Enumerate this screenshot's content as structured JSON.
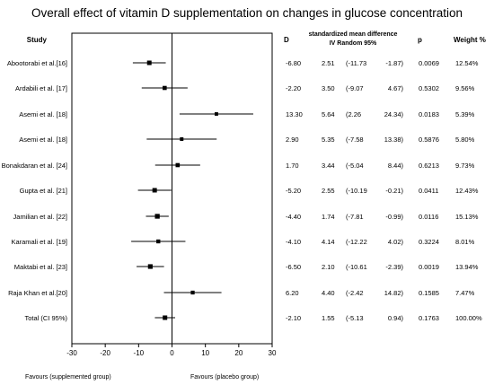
{
  "chart_data": {
    "type": "forest",
    "title": "Overall effect of vitamin D supplementation on changes in glucose concentration",
    "headers": {
      "study": "Study",
      "d": "D",
      "smd_line1": "standardized mean difference",
      "smd_line2": "IV Random 95%",
      "p": "p",
      "weight": "Weight  %"
    },
    "xlim": [
      -30,
      30
    ],
    "xticks": [
      "-30",
      "-20",
      "-10",
      "0",
      "10",
      "20",
      "30"
    ],
    "xtick_values": [
      -30,
      -20,
      -10,
      0,
      10,
      20,
      30
    ],
    "footer_left": "Favours (supplemented group)",
    "footer_right": "Favours (placebo group)",
    "studies": [
      {
        "name": "Abootorabi et al.[16]",
        "d": -6.8,
        "se": 2.51,
        "lo": -11.73,
        "hi": -1.87,
        "d_text": "-6.80",
        "se_text": "2.51",
        "lo_text": "(-11.73",
        "hi_text": "-1.87)",
        "p": "0.0069",
        "weight": "12.54%",
        "weight_value": 12.54
      },
      {
        "name": "Ardabili et al. [17]",
        "d": -2.2,
        "se": 3.5,
        "lo": -9.07,
        "hi": 4.67,
        "d_text": "-2.20",
        "se_text": "3.50",
        "lo_text": "(-9.07",
        "hi_text": "4.67)",
        "p": "0.5302",
        "weight": "9.56%",
        "weight_value": 9.56
      },
      {
        "name": "Asemi et al. [18]",
        "d": 13.3,
        "se": 5.64,
        "lo": 2.26,
        "hi": 24.34,
        "d_text": "13.30",
        "se_text": "5.64",
        "lo_text": "(2.26",
        "hi_text": "24.34)",
        "p": "0.0183",
        "weight": "5.39%",
        "weight_value": 5.39
      },
      {
        "name": "Asemi et al. [18]",
        "d": 2.9,
        "se": 5.35,
        "lo": -7.58,
        "hi": 13.38,
        "d_text": "2.90",
        "se_text": "5.35",
        "lo_text": "(-7.58",
        "hi_text": "13.38)",
        "p": "0.5876",
        "weight": "5.80%",
        "weight_value": 5.8
      },
      {
        "name": "Bonakdaran et al. [24]",
        "d": 1.7,
        "se": 3.44,
        "lo": -5.04,
        "hi": 8.44,
        "d_text": "1.70",
        "se_text": "3.44",
        "lo_text": "(-5.04",
        "hi_text": "8.44)",
        "p": "0.6213",
        "weight": "9.73%",
        "weight_value": 9.73
      },
      {
        "name": "Gupta et al. [21]",
        "d": -5.2,
        "se": 2.55,
        "lo": -10.19,
        "hi": -0.21,
        "d_text": "-5.20",
        "se_text": "2.55",
        "lo_text": "(-10.19",
        "hi_text": "-0.21)",
        "p": "0.0411",
        "weight": "12.43%",
        "weight_value": 12.43
      },
      {
        "name": "Jamilian et al. [22]",
        "d": -4.4,
        "se": 1.74,
        "lo": -7.81,
        "hi": -0.99,
        "d_text": "-4.40",
        "se_text": "1.74",
        "lo_text": "(-7.81",
        "hi_text": "-0.99)",
        "p": "0.0116",
        "weight": "15.13%",
        "weight_value": 15.13
      },
      {
        "name": "Karamali et al. [19]",
        "d": -4.1,
        "se": 4.14,
        "lo": -12.22,
        "hi": 4.02,
        "d_text": "-4.10",
        "se_text": "4.14",
        "lo_text": "(-12.22",
        "hi_text": "4.02)",
        "p": "0.3224",
        "weight": "8.01%",
        "weight_value": 8.01
      },
      {
        "name": "Maktabi et al. [23]",
        "d": -6.5,
        "se": 2.1,
        "lo": -10.61,
        "hi": -2.39,
        "d_text": "-6.50",
        "se_text": "2.10",
        "lo_text": "(-10.61",
        "hi_text": "-2.39)",
        "p": "0.0019",
        "weight": "13.94%",
        "weight_value": 13.94
      },
      {
        "name": "Raja Khan et al.[20]",
        "d": 6.2,
        "se": 4.4,
        "lo": -2.42,
        "hi": 14.82,
        "d_text": "6.20",
        "se_text": "4.40",
        "lo_text": "(-2.42",
        "hi_text": "14.82)",
        "p": "0.1585",
        "weight": "7.47%",
        "weight_value": 7.47
      }
    ],
    "total": {
      "name": "Total (CI 95%)",
      "d": -2.1,
      "se": 1.55,
      "lo": -5.13,
      "hi": 0.94,
      "d_text": "-2.10",
      "se_text": "1.55",
      "lo_text": "(-5.13",
      "hi_text": "0.94)",
      "p": "0.1763",
      "weight": "100.00%",
      "weight_value": 100
    }
  }
}
